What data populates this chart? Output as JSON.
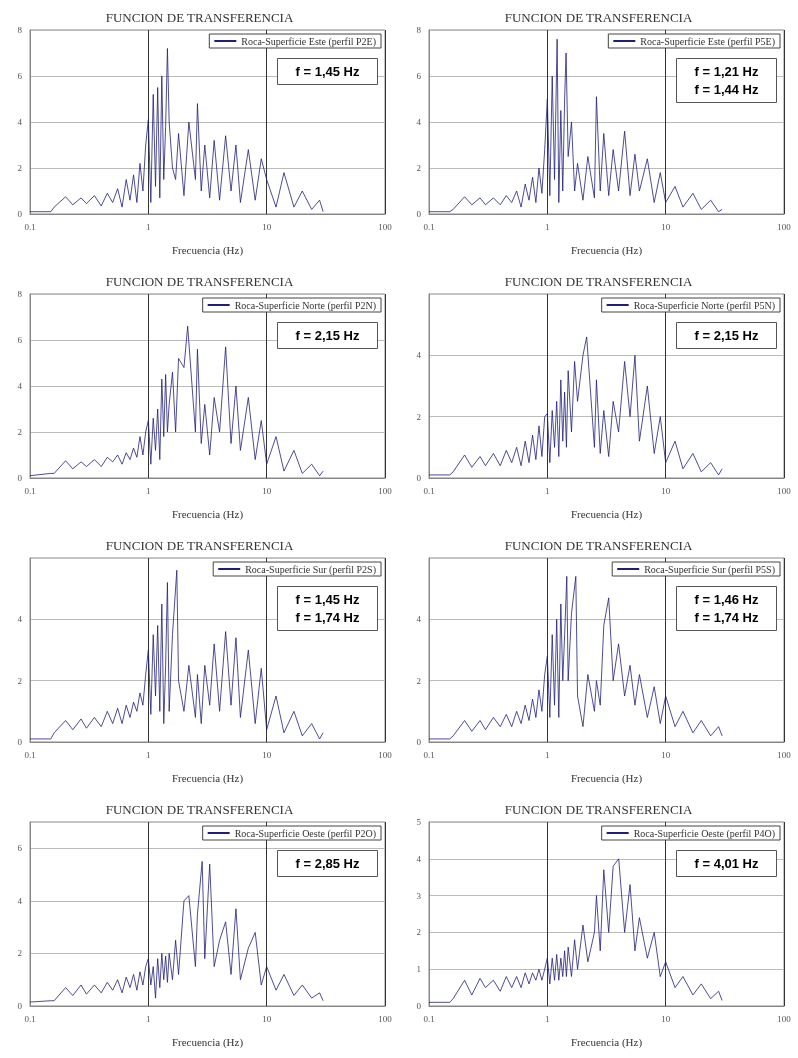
{
  "chart_data": [
    {
      "type": "line",
      "title": "FUNCION DE TRANSFERENCIA",
      "xlabel": "Frecuencia (Hz)",
      "log": "x",
      "grid": true,
      "legend": "top right",
      "marker": "none",
      "xlim": [
        0.1,
        100
      ],
      "xticks": [
        0.1,
        1,
        10,
        100
      ],
      "ylim": [
        0,
        8
      ],
      "yticks": [
        0,
        2,
        4,
        6,
        8
      ],
      "x": [
        0.1,
        0.15,
        0.16,
        0.2,
        0.23,
        0.27,
        0.3,
        0.35,
        0.4,
        0.45,
        0.5,
        0.55,
        0.6,
        0.65,
        0.7,
        0.75,
        0.8,
        0.85,
        0.9,
        0.95,
        1.0,
        1.05,
        1.1,
        1.15,
        1.2,
        1.25,
        1.3,
        1.35,
        1.4,
        1.45,
        1.5,
        1.6,
        1.7,
        1.8,
        2.0,
        2.2,
        2.5,
        2.6,
        2.8,
        3.0,
        3.3,
        3.6,
        4.0,
        4.5,
        5.0,
        5.5,
        6.0,
        7.0,
        8.0,
        9.0,
        10,
        12,
        14,
        17,
        20,
        24,
        28,
        30
      ],
      "series": [
        {
          "name": "Roca-Superficie Este (perfil P2E)",
          "color": "#1f1f7a",
          "values": [
            0.1,
            0.1,
            0.3,
            0.75,
            0.4,
            0.7,
            0.45,
            0.8,
            0.35,
            0.9,
            0.5,
            1.1,
            0.3,
            1.5,
            0.6,
            1.7,
            0.5,
            2.2,
            1.0,
            3.0,
            4.1,
            0.5,
            5.2,
            1.2,
            5.5,
            0.7,
            6.0,
            1.5,
            3.8,
            7.2,
            4.0,
            2.0,
            1.5,
            3.5,
            0.8,
            4.0,
            1.5,
            4.8,
            1.0,
            3.0,
            0.7,
            3.2,
            0.6,
            3.4,
            1.0,
            3.0,
            0.5,
            2.8,
            0.6,
            2.4,
            1.5,
            0.3,
            1.8,
            0.3,
            1.0,
            0.2,
            0.6,
            0.1
          ]
        }
      ],
      "annotations": [
        "f = 1,45 Hz"
      ]
    },
    {
      "type": "line",
      "title": "FUNCION DE TRANSFERENCIA",
      "xlabel": "Frecuencia (Hz)",
      "log": "x",
      "grid": true,
      "legend": "top right",
      "marker": "none",
      "xlim": [
        0.1,
        100
      ],
      "xticks": [
        0.1,
        1,
        10,
        100
      ],
      "ylim": [
        0,
        8
      ],
      "yticks": [
        0,
        2,
        4,
        6,
        8
      ],
      "x": [
        0.1,
        0.15,
        0.16,
        0.2,
        0.23,
        0.27,
        0.3,
        0.35,
        0.4,
        0.45,
        0.5,
        0.55,
        0.6,
        0.65,
        0.7,
        0.75,
        0.8,
        0.85,
        0.9,
        0.95,
        1.0,
        1.05,
        1.1,
        1.15,
        1.21,
        1.25,
        1.3,
        1.35,
        1.4,
        1.44,
        1.5,
        1.6,
        1.7,
        1.8,
        2.0,
        2.2,
        2.5,
        2.6,
        2.8,
        3.0,
        3.3,
        3.6,
        4.0,
        4.5,
        5.0,
        5.5,
        6.0,
        7.0,
        8.0,
        9.0,
        10,
        12,
        14,
        17,
        20,
        24,
        28,
        30
      ],
      "series": [
        {
          "name": "Roca-Superficie Este (perfil P5E)",
          "color": "#1f1f7a",
          "values": [
            0.1,
            0.1,
            0.2,
            0.75,
            0.4,
            0.7,
            0.4,
            0.7,
            0.4,
            0.8,
            0.5,
            1.0,
            0.3,
            1.3,
            0.6,
            1.6,
            0.5,
            2.0,
            0.9,
            2.8,
            5.0,
            0.8,
            6.0,
            1.5,
            7.6,
            0.5,
            4.5,
            1.0,
            5.0,
            7.0,
            2.5,
            4.0,
            1.0,
            2.2,
            0.6,
            2.5,
            0.7,
            5.1,
            1.0,
            3.5,
            0.8,
            2.8,
            1.0,
            3.6,
            0.8,
            2.6,
            1.0,
            2.4,
            0.5,
            1.8,
            0.5,
            1.2,
            0.3,
            0.9,
            0.2,
            0.6,
            0.1,
            0.2
          ]
        }
      ],
      "annotations": [
        "f = 1,21 Hz",
        "f = 1,44 Hz"
      ]
    },
    {
      "type": "line",
      "title": "FUNCION DE TRANSFERENCIA",
      "xlabel": "Frecuencia (Hz)",
      "log": "x",
      "grid": true,
      "legend": "top right",
      "marker": "none",
      "xlim": [
        0.1,
        100
      ],
      "xticks": [
        0.1,
        1,
        10,
        100
      ],
      "ylim": [
        0,
        8
      ],
      "yticks": [
        0,
        2,
        4,
        6,
        8
      ],
      "x": [
        0.1,
        0.15,
        0.16,
        0.2,
        0.23,
        0.27,
        0.3,
        0.35,
        0.4,
        0.45,
        0.5,
        0.55,
        0.6,
        0.65,
        0.7,
        0.75,
        0.8,
        0.85,
        0.9,
        0.95,
        1.0,
        1.05,
        1.1,
        1.15,
        1.2,
        1.25,
        1.3,
        1.35,
        1.4,
        1.45,
        1.5,
        1.6,
        1.7,
        1.8,
        2.0,
        2.15,
        2.5,
        2.6,
        2.8,
        3.0,
        3.3,
        3.6,
        4.0,
        4.5,
        5.0,
        5.5,
        6.0,
        7.0,
        8.0,
        9.0,
        10,
        12,
        14,
        17,
        20,
        24,
        28,
        30
      ],
      "series": [
        {
          "name": "Roca-Superficie Norte (perfil P2N)",
          "color": "#1f1f7a",
          "values": [
            0.1,
            0.2,
            0.2,
            0.75,
            0.4,
            0.7,
            0.5,
            0.8,
            0.5,
            0.9,
            0.7,
            1.0,
            0.6,
            1.1,
            0.8,
            1.3,
            0.9,
            1.8,
            1.0,
            2.0,
            2.5,
            0.6,
            2.6,
            1.2,
            3.0,
            0.8,
            4.3,
            1.8,
            4.5,
            2.0,
            3.2,
            4.6,
            2.0,
            5.2,
            4.8,
            6.6,
            2.0,
            5.6,
            1.5,
            3.2,
            1.0,
            3.5,
            2.0,
            5.7,
            1.5,
            4.0,
            1.2,
            3.5,
            0.8,
            2.5,
            0.6,
            1.8,
            0.3,
            1.2,
            0.2,
            0.6,
            0.1,
            0.3
          ]
        }
      ],
      "annotations": [
        "f = 2,15 Hz"
      ]
    },
    {
      "type": "line",
      "title": "FUNCION DE TRANSFERENCIA",
      "xlabel": "Frecuencia (Hz)",
      "log": "x",
      "grid": true,
      "legend": "top right",
      "marker": "none",
      "xlim": [
        0.1,
        100
      ],
      "xticks": [
        0.1,
        1,
        10,
        100
      ],
      "ylim": [
        0,
        6
      ],
      "yticks": [
        0,
        2,
        4
      ],
      "x": [
        0.1,
        0.15,
        0.16,
        0.2,
        0.23,
        0.27,
        0.3,
        0.35,
        0.4,
        0.45,
        0.5,
        0.55,
        0.6,
        0.65,
        0.7,
        0.75,
        0.8,
        0.85,
        0.9,
        0.95,
        1.0,
        1.05,
        1.1,
        1.15,
        1.2,
        1.25,
        1.3,
        1.35,
        1.4,
        1.45,
        1.5,
        1.6,
        1.7,
        1.8,
        2.0,
        2.15,
        2.5,
        2.6,
        2.8,
        3.0,
        3.3,
        3.6,
        4.0,
        4.5,
        5.0,
        5.5,
        6.0,
        7.0,
        8.0,
        9.0,
        10,
        12,
        14,
        17,
        20,
        24,
        28,
        30
      ],
      "series": [
        {
          "name": "Roca-Superficie Norte (perfil P5N)",
          "color": "#1f1f7a",
          "values": [
            0.1,
            0.1,
            0.2,
            0.75,
            0.35,
            0.7,
            0.4,
            0.8,
            0.4,
            0.9,
            0.5,
            1.0,
            0.4,
            1.2,
            0.5,
            1.4,
            0.6,
            1.7,
            0.7,
            2.0,
            2.1,
            0.5,
            2.2,
            1.0,
            2.5,
            0.7,
            3.2,
            1.2,
            2.8,
            1.0,
            3.5,
            1.5,
            3.8,
            2.5,
            4.0,
            4.6,
            1.0,
            3.2,
            0.8,
            2.2,
            0.7,
            2.5,
            1.5,
            3.8,
            2.0,
            4.0,
            1.2,
            3.0,
            0.8,
            2.0,
            0.5,
            1.2,
            0.3,
            0.8,
            0.2,
            0.5,
            0.1,
            0.3
          ]
        }
      ],
      "annotations": [
        "f = 2,15 Hz"
      ]
    },
    {
      "type": "line",
      "title": "FUNCION DE TRANSFERENCIA",
      "xlabel": "Frecuencia (Hz)",
      "log": "x",
      "grid": true,
      "legend": "top right",
      "marker": "none",
      "xlim": [
        0.1,
        100
      ],
      "xticks": [
        0.1,
        1,
        10,
        100
      ],
      "ylim": [
        0,
        6
      ],
      "yticks": [
        0,
        2,
        4
      ],
      "x": [
        0.1,
        0.15,
        0.16,
        0.2,
        0.23,
        0.27,
        0.3,
        0.35,
        0.4,
        0.45,
        0.5,
        0.55,
        0.6,
        0.65,
        0.7,
        0.75,
        0.8,
        0.85,
        0.9,
        0.95,
        1.0,
        1.05,
        1.1,
        1.15,
        1.2,
        1.25,
        1.3,
        1.35,
        1.4,
        1.45,
        1.5,
        1.6,
        1.74,
        1.8,
        2.0,
        2.2,
        2.5,
        2.6,
        2.8,
        3.0,
        3.3,
        3.6,
        4.0,
        4.5,
        5.0,
        5.5,
        6.0,
        7.0,
        8.0,
        9.0,
        10,
        12,
        14,
        17,
        20,
        24,
        28,
        30
      ],
      "series": [
        {
          "name": "Roca-Superficie Sur (perfil P2S)",
          "color": "#1f1f7a",
          "values": [
            0.1,
            0.1,
            0.3,
            0.7,
            0.4,
            0.75,
            0.45,
            0.8,
            0.5,
            1.0,
            0.6,
            1.1,
            0.6,
            1.2,
            0.8,
            1.3,
            1.0,
            1.6,
            1.2,
            2.2,
            3.0,
            0.9,
            3.5,
            1.5,
            3.8,
            1.0,
            4.5,
            0.6,
            2.5,
            5.2,
            1.0,
            3.5,
            5.6,
            2.0,
            1.0,
            2.5,
            0.8,
            2.2,
            0.6,
            2.5,
            1.2,
            3.2,
            1.0,
            3.6,
            1.2,
            3.4,
            0.8,
            3.0,
            0.6,
            2.4,
            0.4,
            1.5,
            0.3,
            1.0,
            0.2,
            0.6,
            0.1,
            0.3
          ]
        }
      ],
      "annotations": [
        "f = 1,45 Hz",
        "f = 1,74 Hz"
      ]
    },
    {
      "type": "line",
      "title": "FUNCION DE TRANSFERENCIA",
      "xlabel": "Frecuencia (Hz)",
      "log": "x",
      "grid": true,
      "legend": "top right",
      "marker": "none",
      "xlim": [
        0.1,
        100
      ],
      "xticks": [
        0.1,
        1,
        10,
        100
      ],
      "ylim": [
        0,
        6
      ],
      "yticks": [
        0,
        2,
        4
      ],
      "x": [
        0.1,
        0.15,
        0.16,
        0.2,
        0.23,
        0.27,
        0.3,
        0.35,
        0.4,
        0.45,
        0.5,
        0.55,
        0.6,
        0.65,
        0.7,
        0.75,
        0.8,
        0.85,
        0.9,
        0.95,
        1.0,
        1.05,
        1.1,
        1.15,
        1.2,
        1.25,
        1.3,
        1.35,
        1.4,
        1.46,
        1.5,
        1.6,
        1.74,
        1.8,
        2.0,
        2.2,
        2.5,
        2.6,
        2.8,
        3.0,
        3.3,
        3.6,
        4.0,
        4.5,
        5.0,
        5.5,
        6.0,
        7.0,
        8.0,
        9.0,
        10,
        12,
        14,
        17,
        20,
        24,
        28,
        30
      ],
      "series": [
        {
          "name": "Roca-Superficie Sur (perfil P5S)",
          "color": "#1f1f7a",
          "values": [
            0.1,
            0.1,
            0.2,
            0.7,
            0.35,
            0.7,
            0.4,
            0.8,
            0.5,
            0.9,
            0.5,
            1.0,
            0.6,
            1.2,
            0.7,
            1.4,
            0.8,
            1.7,
            1.0,
            2.2,
            2.8,
            0.8,
            3.5,
            1.2,
            4.0,
            0.8,
            4.5,
            2.0,
            3.5,
            5.4,
            2.0,
            4.2,
            5.4,
            1.5,
            0.5,
            2.2,
            1.0,
            2.0,
            1.2,
            3.8,
            4.7,
            2.0,
            3.2,
            1.5,
            2.5,
            1.2,
            2.2,
            0.8,
            1.8,
            0.6,
            1.5,
            0.5,
            1.0,
            0.3,
            0.7,
            0.2,
            0.5,
            0.2
          ]
        }
      ],
      "annotations": [
        "f = 1,46 Hz",
        "f = 1,74 Hz"
      ]
    },
    {
      "type": "line",
      "title": "FUNCION DE TRANSFERENCIA",
      "xlabel": "Frecuencia (Hz)",
      "log": "x",
      "grid": true,
      "legend": "top right",
      "marker": "none",
      "xlim": [
        0.1,
        100
      ],
      "xticks": [
        0.1,
        1,
        10,
        100
      ],
      "ylim": [
        0,
        7
      ],
      "yticks": [
        0,
        2,
        4,
        6
      ],
      "x": [
        0.1,
        0.15,
        0.16,
        0.2,
        0.23,
        0.27,
        0.3,
        0.35,
        0.4,
        0.45,
        0.5,
        0.55,
        0.6,
        0.65,
        0.7,
        0.75,
        0.8,
        0.85,
        0.9,
        0.95,
        1.0,
        1.05,
        1.1,
        1.15,
        1.2,
        1.25,
        1.3,
        1.35,
        1.4,
        1.45,
        1.5,
        1.6,
        1.7,
        1.8,
        2.0,
        2.2,
        2.5,
        2.6,
        2.85,
        3.0,
        3.3,
        3.6,
        4.0,
        4.5,
        5.0,
        5.5,
        6.0,
        7.0,
        8.0,
        9.0,
        10,
        12,
        14,
        17,
        20,
        24,
        28,
        30
      ],
      "series": [
        {
          "name": "Roca-Superficie Oeste (perfil P2O)",
          "color": "#1f1f7a",
          "values": [
            0.15,
            0.2,
            0.2,
            0.7,
            0.4,
            0.8,
            0.45,
            0.8,
            0.5,
            0.9,
            0.6,
            1.0,
            0.5,
            1.1,
            0.7,
            1.2,
            0.6,
            1.3,
            0.8,
            1.5,
            1.8,
            0.8,
            1.5,
            0.3,
            1.8,
            0.7,
            2.0,
            1.0,
            1.9,
            0.9,
            2.0,
            1.0,
            2.5,
            1.2,
            4.0,
            4.2,
            1.5,
            3.5,
            5.5,
            1.8,
            5.4,
            1.5,
            2.5,
            3.2,
            1.2,
            3.7,
            1.0,
            2.2,
            2.8,
            0.8,
            1.5,
            0.6,
            1.2,
            0.4,
            0.8,
            0.3,
            0.5,
            0.2
          ]
        }
      ],
      "annotations": [
        "f = 2,85 Hz"
      ]
    },
    {
      "type": "line",
      "title": "FUNCION DE TRANSFERENCIA",
      "xlabel": "Frecuencia (Hz)",
      "log": "x",
      "grid": true,
      "legend": "top right",
      "marker": "none",
      "xlim": [
        0.1,
        100
      ],
      "xticks": [
        0.1,
        1,
        10,
        100
      ],
      "ylim": [
        0,
        5
      ],
      "yticks": [
        0,
        1,
        2,
        3,
        4,
        5
      ],
      "x": [
        0.1,
        0.15,
        0.16,
        0.2,
        0.23,
        0.27,
        0.3,
        0.35,
        0.4,
        0.45,
        0.5,
        0.55,
        0.6,
        0.65,
        0.7,
        0.75,
        0.8,
        0.85,
        0.9,
        0.95,
        1.0,
        1.05,
        1.1,
        1.15,
        1.2,
        1.25,
        1.3,
        1.35,
        1.4,
        1.45,
        1.5,
        1.6,
        1.7,
        1.8,
        2.0,
        2.2,
        2.5,
        2.6,
        2.8,
        3.0,
        3.3,
        3.6,
        4.01,
        4.5,
        5.0,
        5.5,
        6.0,
        7.0,
        8.0,
        9.0,
        10,
        12,
        14,
        17,
        20,
        24,
        28,
        30
      ],
      "series": [
        {
          "name": "Roca-Superficie Oeste (perfil P4O)",
          "color": "#1f1f7a",
          "values": [
            0.1,
            0.1,
            0.2,
            0.7,
            0.3,
            0.75,
            0.5,
            0.7,
            0.4,
            0.8,
            0.5,
            0.8,
            0.5,
            0.9,
            0.6,
            0.9,
            0.7,
            1.0,
            0.7,
            1.0,
            1.3,
            0.6,
            1.3,
            0.7,
            1.4,
            0.7,
            1.3,
            0.8,
            1.5,
            0.8,
            1.6,
            0.8,
            1.8,
            1.0,
            2.2,
            1.2,
            2.0,
            3.0,
            1.5,
            3.7,
            2.0,
            3.8,
            4.0,
            2.0,
            3.3,
            1.5,
            2.4,
            1.3,
            2.0,
            0.8,
            1.2,
            0.5,
            0.8,
            0.3,
            0.6,
            0.2,
            0.4,
            0.15
          ]
        }
      ],
      "annotations": [
        "f = 4,01 Hz"
      ]
    }
  ]
}
